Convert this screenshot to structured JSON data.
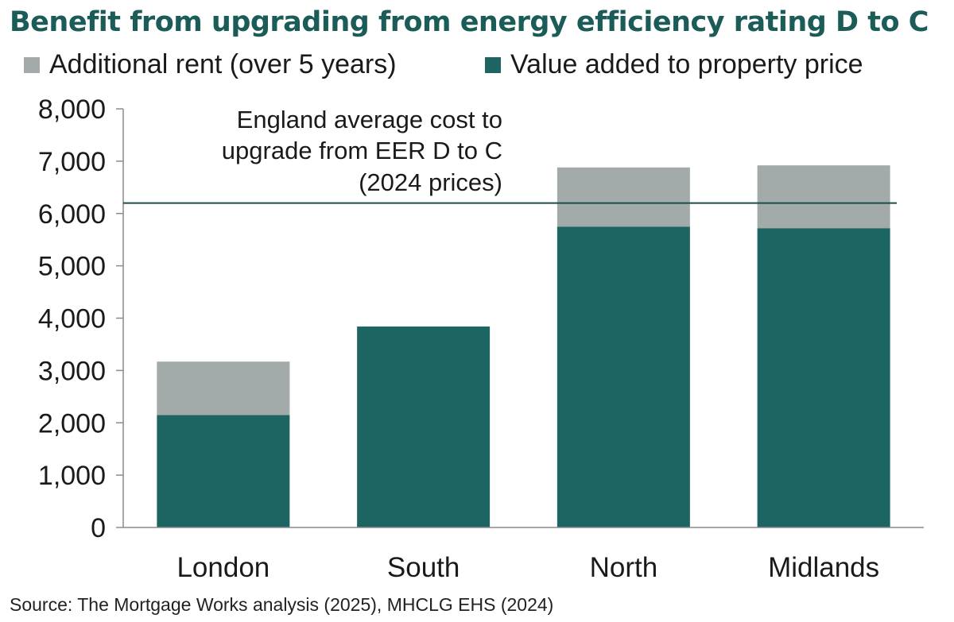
{
  "chart_data": {
    "type": "bar",
    "stacked": true,
    "title": "Benefit from upgrading from energy efficiency rating D to C",
    "categories": [
      "London",
      "South",
      "North",
      "Midlands"
    ],
    "series": [
      {
        "name": "Value added to property price",
        "color": "#1d6562",
        "values": [
          2150,
          3840,
          5750,
          5720
        ]
      },
      {
        "name": "Additional rent (over 5 years)",
        "color": "#a3abaa",
        "values": [
          1020,
          0,
          1130,
          1200
        ]
      }
    ],
    "legend_order": [
      1,
      0
    ],
    "legend_placement": "top",
    "ylim": [
      0,
      8000
    ],
    "yticks": [
      0,
      1000,
      2000,
      3000,
      4000,
      5000,
      6000,
      7000,
      8000
    ],
    "ytick_labels": [
      "0",
      "1,000",
      "2,000",
      "3,000",
      "4,000",
      "5,000",
      "6,000",
      "7,000",
      "8,000"
    ],
    "grid": false,
    "reference_line": {
      "value": 6200,
      "color": "#1b4e4b",
      "label_lines": [
        "England average cost to",
        "upgrade from EER D to C",
        "(2024 prices)"
      ]
    },
    "source": "Source: The Mortgage Works analysis (2025), MHCLG EHS (2024)"
  }
}
